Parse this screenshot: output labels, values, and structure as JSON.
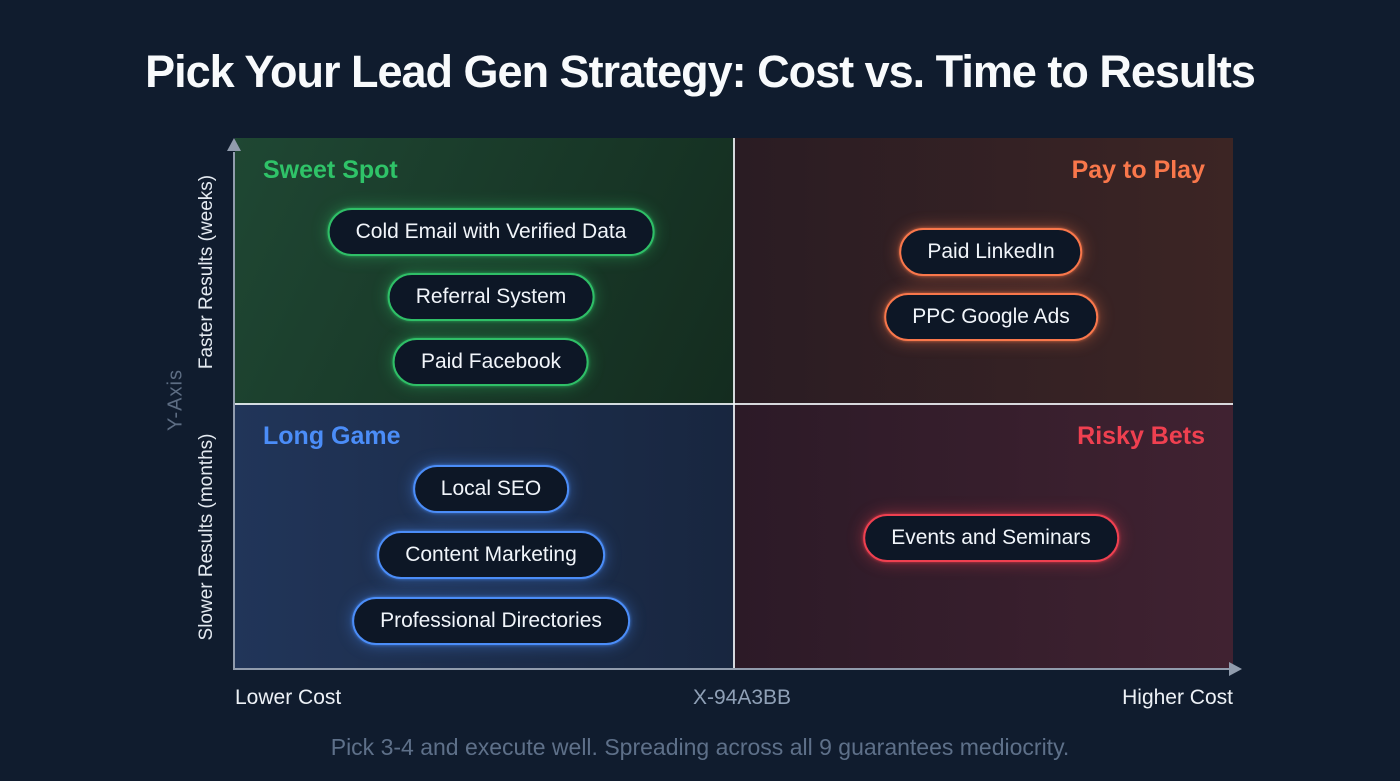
{
  "title": "Pick Your Lead Gen Strategy: Cost vs. Time to Results",
  "caption": "Pick 3-4 and execute well. Spreading across all 9 guarantees mediocrity.",
  "colors": {
    "background": "#101c2e",
    "green_accent": "#2fbf67",
    "orange_accent": "#f9774b",
    "blue_accent": "#4b8df8",
    "red_accent": "#ef4050",
    "axis_gray": "#919cad",
    "muted_text": "#5e7089"
  },
  "chart_data": {
    "type": "quadrant-matrix",
    "title": "Pick Your Lead Gen Strategy: Cost vs. Time to Results",
    "x_axis": {
      "label_left": "Lower Cost",
      "label_center": "X-94A3BB",
      "label_right": "Higher Cost"
    },
    "y_axis": {
      "name": "Y-Axis",
      "label_top": "Faster Results (weeks)",
      "label_bottom": "Slower Results (months)"
    },
    "quadrants": [
      {
        "position": "top-left",
        "label": "Sweet Spot",
        "accent": "#2fbf67",
        "items": [
          "Cold Email with Verified Data",
          "Referral System",
          "Paid Facebook"
        ]
      },
      {
        "position": "top-right",
        "label": "Pay to Play",
        "accent": "#f9774b",
        "items": [
          "Paid LinkedIn",
          "PPC Google Ads"
        ]
      },
      {
        "position": "bottom-left",
        "label": "Long Game",
        "accent": "#4b8df8",
        "items": [
          "Local SEO",
          "Content Marketing",
          "Professional Directories"
        ]
      },
      {
        "position": "bottom-right",
        "label": "Risky Bets",
        "accent": "#ef4050",
        "items": [
          "Events and Seminars"
        ]
      }
    ]
  }
}
